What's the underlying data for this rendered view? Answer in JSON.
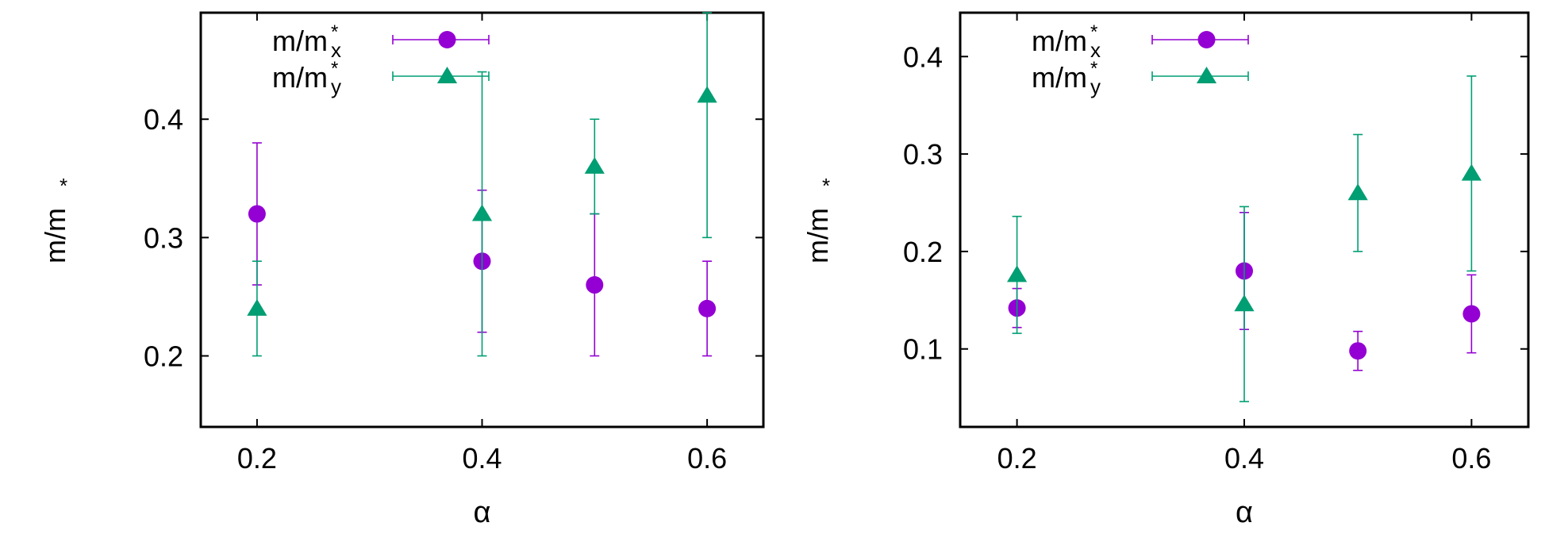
{
  "colors": {
    "mx": "#9400d3",
    "my": "#009e73",
    "axis": "#000000"
  },
  "chart_data": [
    {
      "type": "scatter",
      "xlabel": "α",
      "ylabel": "m/m",
      "ylabel_sup": "*",
      "xlim": [
        0.15,
        0.65
      ],
      "ylim": [
        0.14,
        0.49
      ],
      "xticks": [
        0.2,
        0.4,
        0.6
      ],
      "xtick_labels": [
        "0.2",
        "0.4",
        "0.6"
      ],
      "yticks": [
        0.2,
        0.3,
        0.4
      ],
      "ytick_labels": [
        "0.2",
        "0.3",
        "0.4"
      ],
      "legend_position": "top-left",
      "series": [
        {
          "key": "mx",
          "name_base": "m/m",
          "name_sup": "*",
          "name_sub": "x",
          "marker": "circle",
          "x": [
            0.2,
            0.4,
            0.5,
            0.6
          ],
          "y": [
            0.32,
            0.28,
            0.26,
            0.24
          ],
          "yerr_low": [
            0.26,
            0.22,
            0.2,
            0.2
          ],
          "yerr_high": [
            0.38,
            0.34,
            0.32,
            0.28
          ]
        },
        {
          "key": "my",
          "name_base": "m/m",
          "name_sup": "*",
          "name_sub": "y",
          "marker": "triangle",
          "x": [
            0.2,
            0.4,
            0.5,
            0.6
          ],
          "y": [
            0.24,
            0.32,
            0.36,
            0.42
          ],
          "yerr_low": [
            0.2,
            0.2,
            0.32,
            0.3
          ],
          "yerr_high": [
            0.28,
            0.44,
            0.4,
            0.49
          ]
        }
      ]
    },
    {
      "type": "scatter",
      "xlabel": "α",
      "ylabel": "m/m",
      "ylabel_sup": "*",
      "xlim": [
        0.15,
        0.65
      ],
      "ylim": [
        0.02,
        0.445
      ],
      "xticks": [
        0.2,
        0.4,
        0.6
      ],
      "xtick_labels": [
        "0.2",
        "0.4",
        "0.6"
      ],
      "yticks": [
        0.1,
        0.2,
        0.3,
        0.4
      ],
      "ytick_labels": [
        "0.1",
        "0.2",
        "0.3",
        "0.4"
      ],
      "legend_position": "top-left",
      "series": [
        {
          "key": "mx",
          "name_base": "m/m",
          "name_sup": "*",
          "name_sub": "x",
          "marker": "circle",
          "x": [
            0.2,
            0.4,
            0.5,
            0.6
          ],
          "y": [
            0.142,
            0.18,
            0.098,
            0.136
          ],
          "yerr_low": [
            0.122,
            0.12,
            0.078,
            0.096
          ],
          "yerr_high": [
            0.162,
            0.24,
            0.118,
            0.176
          ]
        },
        {
          "key": "my",
          "name_base": "m/m",
          "name_sup": "*",
          "name_sub": "y",
          "marker": "triangle",
          "x": [
            0.2,
            0.4,
            0.5,
            0.6
          ],
          "y": [
            0.176,
            0.146,
            0.26,
            0.28
          ],
          "yerr_low": [
            0.116,
            0.046,
            0.2,
            0.18
          ],
          "yerr_high": [
            0.236,
            0.246,
            0.32,
            0.38
          ]
        }
      ]
    }
  ]
}
